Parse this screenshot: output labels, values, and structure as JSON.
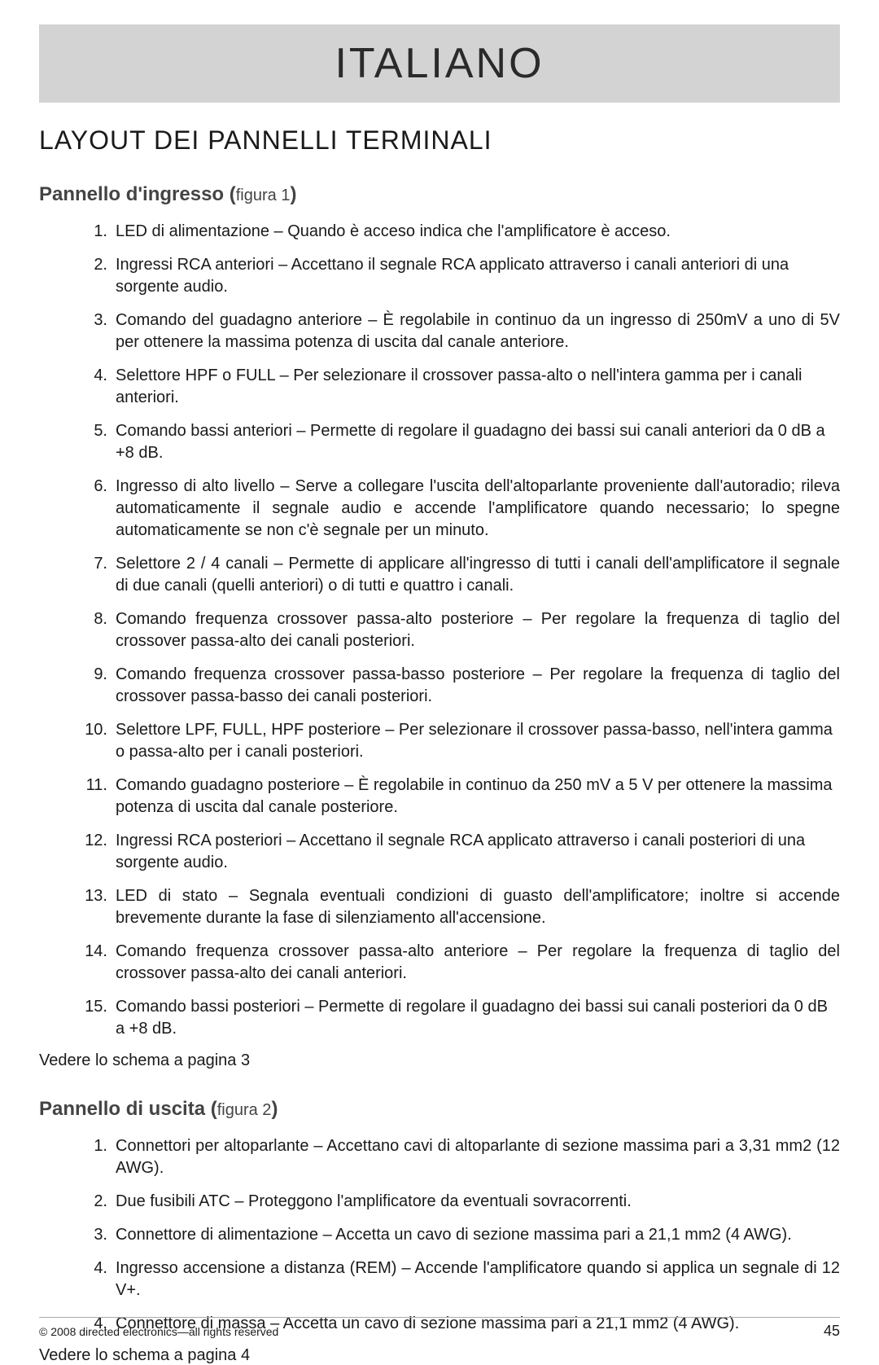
{
  "banner": {
    "title": "ITALIANO"
  },
  "section": {
    "title": "LAYOUT DEI PANNELLI TERMINALI"
  },
  "sub1": {
    "title_bold": "Pannello d'ingresso (",
    "title_fig": "figura 1",
    "title_close": ")",
    "items": [
      {
        "n": "1.",
        "text": "LED di alimentazione – Quando è acceso indica che l'amplificatore è acceso.",
        "justify": false
      },
      {
        "n": "2.",
        "text": "Ingressi RCA anteriori – Accettano il segnale RCA applicato attraverso i canali anteriori di una sorgente audio.",
        "justify": false
      },
      {
        "n": "3.",
        "text": " Comando del guadagno anteriore – È regolabile in continuo da un ingresso di 250mV a uno di 5V per ottenere la massima potenza di uscita dal canale anteriore.",
        "justify": true
      },
      {
        "n": "4.",
        "text": "Selettore HPF o FULL – Per selezionare il crossover passa-alto o nell'intera gamma per i canali anteriori.",
        "justify": false
      },
      {
        "n": "5.",
        "text": "Comando bassi anteriori – Permette di regolare il guadagno dei bassi sui canali anteriori da 0 dB a +8 dB.",
        "justify": false
      },
      {
        "n": "6.",
        "text": "Ingresso di alto livello – Serve a collegare l'uscita dell'altoparlante proveniente dall'autoradio; rileva automaticamente il segnale audio e accende l'amplificatore quando necessario; lo spegne automaticamente se non c'è segnale per un minuto.",
        "justify": true
      },
      {
        "n": "7.",
        "text": "Selettore 2 / 4 canali – Permette di applicare all'ingresso di tutti i canali dell'amplificatore il segnale di due canali (quelli anteriori) o di tutti e quattro i canali.",
        "justify": true
      },
      {
        "n": "8.",
        "text": "Comando frequenza crossover passa-alto posteriore – Per regolare la frequenza di taglio del crossover passa-alto dei canali posteriori.",
        "justify": true
      },
      {
        "n": "9.",
        "text": "Comando frequenza crossover passa-basso posteriore – Per regolare la frequenza di taglio del crossover passa-basso dei canali posteriori.",
        "justify": true
      },
      {
        "n": "10.",
        "text": "Selettore LPF, FULL, HPF posteriore – Per selezionare il crossover passa-basso, nell'intera gamma o passa-alto per i canali posteriori.",
        "justify": false
      },
      {
        "n": "11.",
        "text": "Comando guadagno posteriore – È regolabile in continuo da 250 mV a 5 V per ottenere la massima potenza di uscita dal canale posteriore.",
        "justify": false
      },
      {
        "n": "12.",
        "text": "Ingressi RCA posteriori – Accettano il segnale RCA applicato attraverso i canali posteriori di una sorgente audio.",
        "justify": false
      },
      {
        "n": "13.",
        "text": "LED di stato – Segnala eventuali condizioni di guasto dell'amplificatore; inoltre si accende brevemente durante la fase di silenziamento all'accensione.",
        "justify": true
      },
      {
        "n": "14.",
        "text": "Comando frequenza crossover passa-alto anteriore – Per regolare la frequenza di taglio del crossover passa-alto dei canali anteriori.",
        "justify": true
      },
      {
        "n": "15.",
        "text": "Comando bassi posteriori – Permette di regolare il guadagno dei bassi sui canali posteriori da 0 dB a +8 dB.",
        "justify": false
      }
    ],
    "schema_ref": "Vedere lo schema a pagina 3"
  },
  "sub2": {
    "title_bold": "Pannello di uscita (",
    "title_fig": "figura 2",
    "title_close": ")",
    "items": [
      {
        "n": "1.",
        "text": " Connettori per altoparlante – Accettano cavi di altoparlante di sezione massima pari a 3,31 mm2 (12 AWG).",
        "justify": true
      },
      {
        "n": "2.",
        "text": "Due fusibili ATC – Proteggono l'amplificatore da eventuali sovracorrenti.",
        "justify": false
      },
      {
        "n": "3.",
        "text": "Connettore di alimentazione – Accetta un cavo di sezione massima pari a 21,1 mm2 (4 AWG).",
        "justify": false
      },
      {
        "n": "4.",
        "text": "Ingresso accensione a distanza (REM) – Accende l'amplificatore quando si applica un segnale di 12 V+.",
        "justify": true
      },
      {
        "n": "4.",
        "text": "Connettore di massa – Accetta un cavo di sezione massima pari a 21,1 mm2 (4 AWG).",
        "justify": false
      }
    ],
    "schema_ref": "Vedere lo schema a pagina 4"
  },
  "footer": {
    "copyright": "© 2008 directed electronics—all rights reserved",
    "page": "45"
  }
}
